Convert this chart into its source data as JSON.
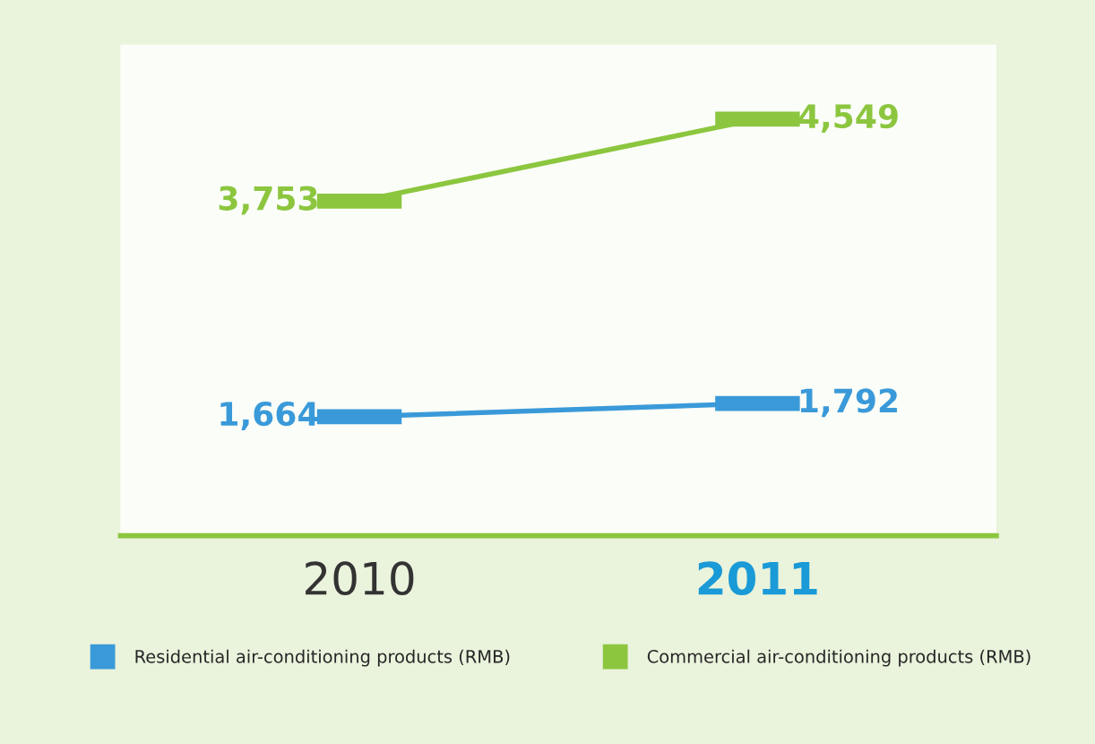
{
  "chart_data": {
    "type": "line",
    "categories": [
      "2010",
      "2011"
    ],
    "series": [
      {
        "name": "Residential air-conditioning products (RMB)",
        "color": "#3a9ad9",
        "values": [
          1664,
          1792
        ],
        "value_labels": [
          "1,664",
          "1,792"
        ]
      },
      {
        "name": "Commercial air-conditioning products (RMB)",
        "color": "#8cc63f",
        "values": [
          3753,
          4549
        ],
        "value_labels": [
          "3,753",
          "4,549"
        ]
      }
    ],
    "legend": "bottom",
    "grid": false
  }
}
